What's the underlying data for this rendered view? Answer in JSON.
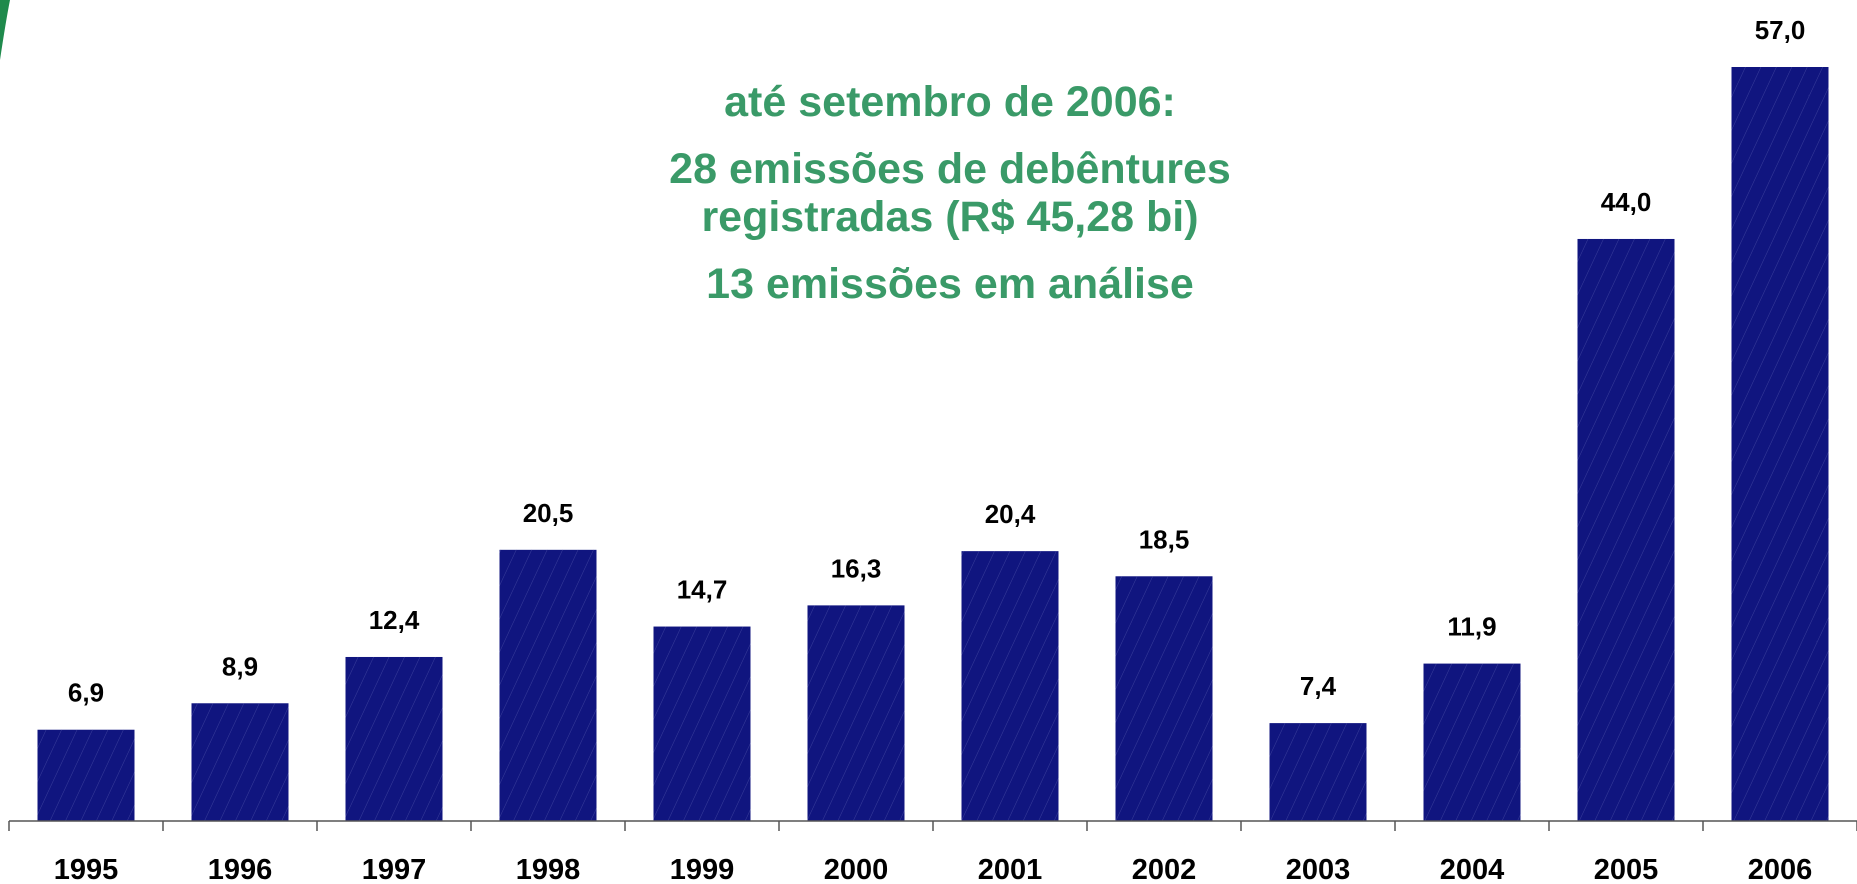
{
  "chart_data": {
    "type": "bar",
    "annotations": [
      "até setembro de 2006:",
      "28 emissões de debêntures",
      "registradas (R$ 45,28 bi)",
      "13 emissões em análise"
    ],
    "categories": [
      "1995",
      "1996",
      "1997",
      "1998",
      "1999",
      "2000",
      "2001",
      "2002",
      "2003",
      "2004",
      "2005",
      "2006"
    ],
    "values": [
      6.9,
      8.9,
      12.4,
      20.5,
      14.7,
      16.3,
      20.4,
      18.5,
      7.4,
      11.9,
      44.0,
      57.0
    ],
    "value_labels": [
      "6,9",
      "8,9",
      "12,4",
      "20,5",
      "14,7",
      "16,3",
      "20,4",
      "18,5",
      "7,4",
      "11,9",
      "44,0",
      "57,0"
    ],
    "color": "#10157f",
    "annotation_color": "#3a9a68"
  }
}
